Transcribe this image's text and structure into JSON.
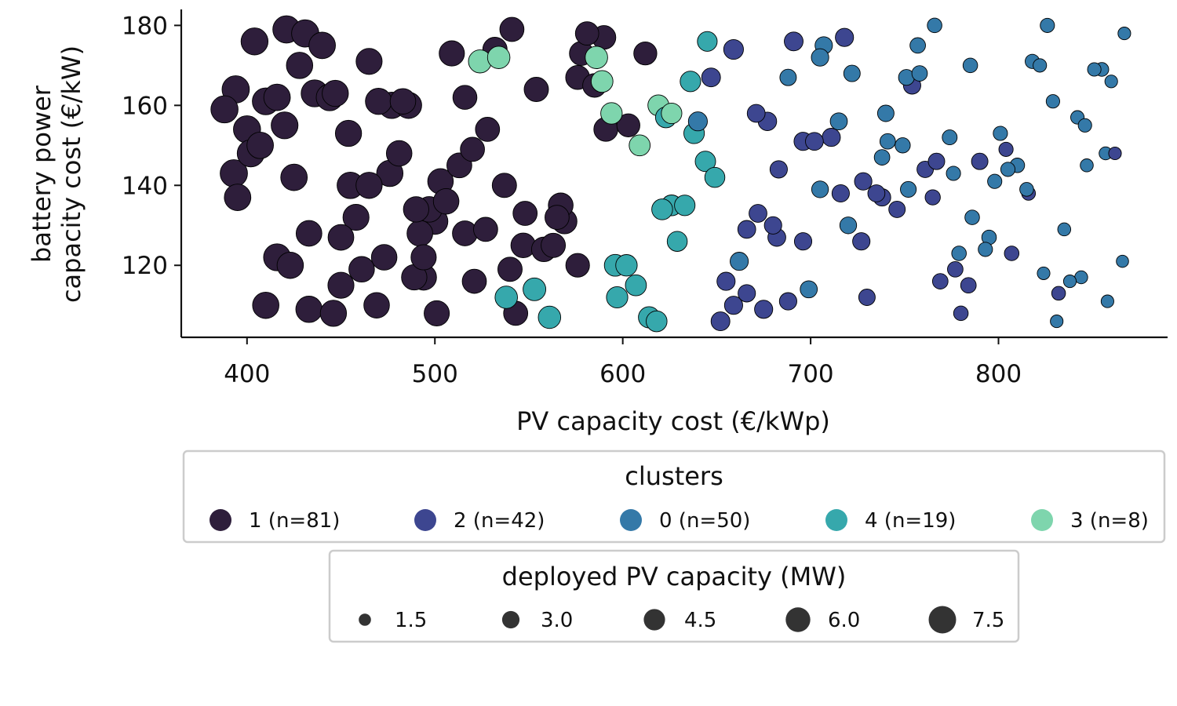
{
  "chart_data": {
    "type": "scatter",
    "xlabel": "PV capacity cost (€/kWp)",
    "ylabel_lines": [
      "battery power",
      "capacity cost (€/kW)"
    ],
    "xlim": [
      365,
      890
    ],
    "ylim": [
      102,
      184
    ],
    "xticks": [
      400,
      500,
      600,
      700,
      800
    ],
    "yticks": [
      120,
      140,
      160,
      180
    ],
    "grid": false,
    "point_edge_color": "#000000",
    "cluster_legend": {
      "title": "clusters",
      "placement": "below",
      "entries": [
        {
          "cluster": "1",
          "label": "1 (n=81)",
          "color": "#2e1e3b"
        },
        {
          "cluster": "2",
          "label": "2 (n=42)",
          "color": "#3d4690"
        },
        {
          "cluster": "0",
          "label": "0 (n=50)",
          "color": "#3479a8"
        },
        {
          "cluster": "4",
          "label": "4 (n=19)",
          "color": "#36a8ac"
        },
        {
          "cluster": "3",
          "label": "3 (n=8)",
          "color": "#7ed5ad"
        }
      ]
    },
    "size_legend": {
      "title": "deployed PV capacity (MW)",
      "placement": "below",
      "entries": [
        {
          "label": "1.5",
          "value": 1.5
        },
        {
          "label": "3.0",
          "value": 3.0
        },
        {
          "label": "4.5",
          "value": 4.5
        },
        {
          "label": "6.0",
          "value": 6.0
        },
        {
          "label": "7.5",
          "value": 7.5
        }
      ]
    },
    "series": [
      {
        "cluster": "1",
        "points": [
          [
            421,
            179,
            7.4
          ],
          [
            404,
            176,
            7.2
          ],
          [
            431,
            178,
            7.4
          ],
          [
            440,
            175,
            7.0
          ],
          [
            428,
            170,
            6.9
          ],
          [
            465,
            171,
            6.7
          ],
          [
            388,
            159,
            7.3
          ],
          [
            394,
            164,
            7.4
          ],
          [
            400,
            154,
            7.3
          ],
          [
            410,
            161,
            7.1
          ],
          [
            416,
            162,
            7.0
          ],
          [
            436,
            163,
            7.2
          ],
          [
            444,
            162,
            7.1
          ],
          [
            447,
            163,
            6.8
          ],
          [
            420,
            155,
            7.1
          ],
          [
            402,
            148,
            7.3
          ],
          [
            407,
            150,
            7.0
          ],
          [
            393,
            143,
            7.4
          ],
          [
            395,
            137,
            7.0
          ],
          [
            454,
            153,
            6.8
          ],
          [
            470,
            161,
            6.8
          ],
          [
            477,
            160,
            6.9
          ],
          [
            483,
            161,
            6.5
          ],
          [
            486,
            160,
            6.8
          ],
          [
            481,
            148,
            6.5
          ],
          [
            476,
            143,
            6.9
          ],
          [
            425,
            142,
            7.0
          ],
          [
            455,
            140,
            7.0
          ],
          [
            465,
            140,
            6.8
          ],
          [
            497,
            134,
            6.5
          ],
          [
            503,
            141,
            6.5
          ],
          [
            506,
            136,
            6.5
          ],
          [
            500,
            131,
            6.7
          ],
          [
            490,
            134,
            6.4
          ],
          [
            492,
            128,
            6.6
          ],
          [
            458,
            132,
            6.7
          ],
          [
            433,
            128,
            6.6
          ],
          [
            450,
            127,
            6.6
          ],
          [
            473,
            122,
            6.5
          ],
          [
            494,
            122,
            6.3
          ],
          [
            494,
            117,
            6.6
          ],
          [
            489,
            117,
            6.4
          ],
          [
            461,
            119,
            6.5
          ],
          [
            416,
            122,
            7.2
          ],
          [
            423,
            120,
            6.9
          ],
          [
            410,
            110,
            6.9
          ],
          [
            433,
            109,
            6.9
          ],
          [
            446,
            108,
            6.8
          ],
          [
            450,
            115,
            6.7
          ],
          [
            469,
            110,
            6.5
          ],
          [
            501,
            108,
            6.3
          ],
          [
            509,
            173,
            6.3
          ],
          [
            541,
            179,
            5.8
          ],
          [
            532,
            174,
            5.9
          ],
          [
            554,
            164,
            5.9
          ],
          [
            516,
            162,
            5.7
          ],
          [
            528,
            154,
            5.8
          ],
          [
            520,
            149,
            5.8
          ],
          [
            513,
            145,
            6.2
          ],
          [
            537,
            140,
            5.9
          ],
          [
            516,
            128,
            6.2
          ],
          [
            527,
            129,
            5.8
          ],
          [
            548,
            133,
            5.8
          ],
          [
            547,
            125,
            6.0
          ],
          [
            558,
            124,
            6.0
          ],
          [
            563,
            125,
            5.9
          ],
          [
            565,
            132,
            5.8
          ],
          [
            567,
            135,
            6.1
          ],
          [
            569,
            131,
            6.2
          ],
          [
            540,
            119,
            5.9
          ],
          [
            521,
            116,
            5.8
          ],
          [
            576,
            120,
            5.6
          ],
          [
            543,
            108,
            5.8
          ],
          [
            581,
            178,
            5.4
          ],
          [
            590,
            177,
            5.6
          ],
          [
            578,
            173,
            5.7
          ],
          [
            576,
            167,
            5.7
          ],
          [
            585,
            165,
            5.6
          ],
          [
            612,
            173,
            5.3
          ],
          [
            591,
            154,
            5.7
          ],
          [
            603,
            155,
            5.3
          ]
        ]
      },
      {
        "cluster": "2",
        "points": [
          [
            659,
            174,
            3.9
          ],
          [
            691,
            176,
            3.5
          ],
          [
            718,
            177,
            3.3
          ],
          [
            647,
            167,
            3.5
          ],
          [
            671,
            158,
            3.2
          ],
          [
            677,
            156,
            3.4
          ],
          [
            696,
            151,
            3.3
          ],
          [
            702,
            151,
            3.2
          ],
          [
            711,
            152,
            3.3
          ],
          [
            683,
            144,
            3.0
          ],
          [
            716,
            138,
            3.0
          ],
          [
            728,
            141,
            3.0
          ],
          [
            735,
            138,
            2.9
          ],
          [
            738,
            137,
            3.0
          ],
          [
            746,
            134,
            2.7
          ],
          [
            754,
            165,
            3.0
          ],
          [
            761,
            144,
            2.7
          ],
          [
            767,
            146,
            2.7
          ],
          [
            790,
            146,
            2.7
          ],
          [
            765,
            137,
            2.3
          ],
          [
            672,
            133,
            3.2
          ],
          [
            666,
            129,
            3.2
          ],
          [
            680,
            130,
            3.0
          ],
          [
            682,
            127,
            3.2
          ],
          [
            696,
            126,
            3.0
          ],
          [
            727,
            126,
            3.0
          ],
          [
            655,
            116,
            3.3
          ],
          [
            659,
            110,
            3.3
          ],
          [
            666,
            113,
            3.0
          ],
          [
            675,
            109,
            3.3
          ],
          [
            688,
            111,
            3.0
          ],
          [
            652,
            106,
            3.5
          ],
          [
            730,
            112,
            2.7
          ],
          [
            769,
            116,
            2.4
          ],
          [
            777,
            119,
            2.4
          ],
          [
            784,
            115,
            2.4
          ],
          [
            807,
            123,
            2.1
          ],
          [
            804,
            149,
            2.0
          ],
          [
            816,
            138,
            1.9
          ],
          [
            832,
            113,
            1.9
          ],
          [
            780,
            108,
            2.1
          ],
          [
            862,
            148,
            1.6
          ]
        ]
      },
      {
        "cluster": "0",
        "points": [
          [
            707,
            175,
            3.0
          ],
          [
            705,
            172,
            3.0
          ],
          [
            722,
            168,
            2.7
          ],
          [
            688,
            167,
            2.7
          ],
          [
            715,
            156,
            2.9
          ],
          [
            740,
            158,
            2.7
          ],
          [
            741,
            151,
            2.4
          ],
          [
            749,
            150,
            2.3
          ],
          [
            738,
            147,
            2.4
          ],
          [
            751,
            167,
            2.5
          ],
          [
            757,
            175,
            2.4
          ],
          [
            758,
            168,
            2.4
          ],
          [
            766,
            180,
            2.1
          ],
          [
            774,
            152,
            2.2
          ],
          [
            776,
            143,
            2.0
          ],
          [
            785,
            170,
            2.1
          ],
          [
            786,
            132,
            2.1
          ],
          [
            795,
            127,
            2.1
          ],
          [
            801,
            153,
            2.0
          ],
          [
            798,
            141,
            2.0
          ],
          [
            805,
            144,
            2.0
          ],
          [
            810,
            145,
            2.1
          ],
          [
            815,
            139,
            1.9
          ],
          [
            818,
            171,
            2.0
          ],
          [
            822,
            170,
            1.8
          ],
          [
            826,
            180,
            2.0
          ],
          [
            829,
            161,
            1.8
          ],
          [
            842,
            157,
            1.8
          ],
          [
            846,
            155,
            1.8
          ],
          [
            847,
            145,
            1.7
          ],
          [
            851,
            169,
            1.8
          ],
          [
            855,
            169,
            1.9
          ],
          [
            857,
            148,
            1.7
          ],
          [
            860,
            166,
            1.6
          ],
          [
            867,
            178,
            1.6
          ],
          [
            866,
            121,
            1.5
          ],
          [
            858,
            111,
            1.6
          ],
          [
            844,
            117,
            1.7
          ],
          [
            838,
            116,
            1.6
          ],
          [
            835,
            129,
            1.7
          ],
          [
            824,
            118,
            1.6
          ],
          [
            831,
            106,
            1.6
          ],
          [
            793,
            124,
            2.0
          ],
          [
            779,
            123,
            2.1
          ],
          [
            752,
            139,
            2.5
          ],
          [
            720,
            130,
            2.8
          ],
          [
            705,
            139,
            2.8
          ],
          [
            699,
            114,
            2.9
          ],
          [
            662,
            121,
            3.3
          ],
          [
            640,
            156,
            3.6
          ]
        ]
      },
      {
        "cluster": "4",
        "points": [
          [
            645,
            176,
            3.9
          ],
          [
            636,
            166,
            4.2
          ],
          [
            638,
            153,
            4.2
          ],
          [
            644,
            146,
            4.1
          ],
          [
            649,
            142,
            4.0
          ],
          [
            633,
            135,
            4.2
          ],
          [
            626,
            135,
            4.3
          ],
          [
            621,
            134,
            4.3
          ],
          [
            629,
            126,
            4.0
          ],
          [
            596,
            120,
            4.7
          ],
          [
            602,
            120,
            4.6
          ],
          [
            607,
            115,
            4.4
          ],
          [
            597,
            112,
            4.5
          ],
          [
            614,
            107,
            4.5
          ],
          [
            618,
            106,
            4.3
          ],
          [
            538,
            112,
            5.0
          ],
          [
            553,
            114,
            5.1
          ],
          [
            561,
            107,
            5.0
          ],
          [
            623,
            157,
            4.3
          ]
        ]
      },
      {
        "cluster": "3",
        "points": [
          [
            524,
            171,
            5.3
          ],
          [
            534,
            172,
            5.0
          ],
          [
            586,
            172,
            5.0
          ],
          [
            589,
            166,
            4.7
          ],
          [
            594,
            158,
            4.6
          ],
          [
            619,
            160,
            4.4
          ],
          [
            626,
            158,
            4.2
          ],
          [
            609,
            150,
            4.4
          ]
        ]
      }
    ]
  }
}
